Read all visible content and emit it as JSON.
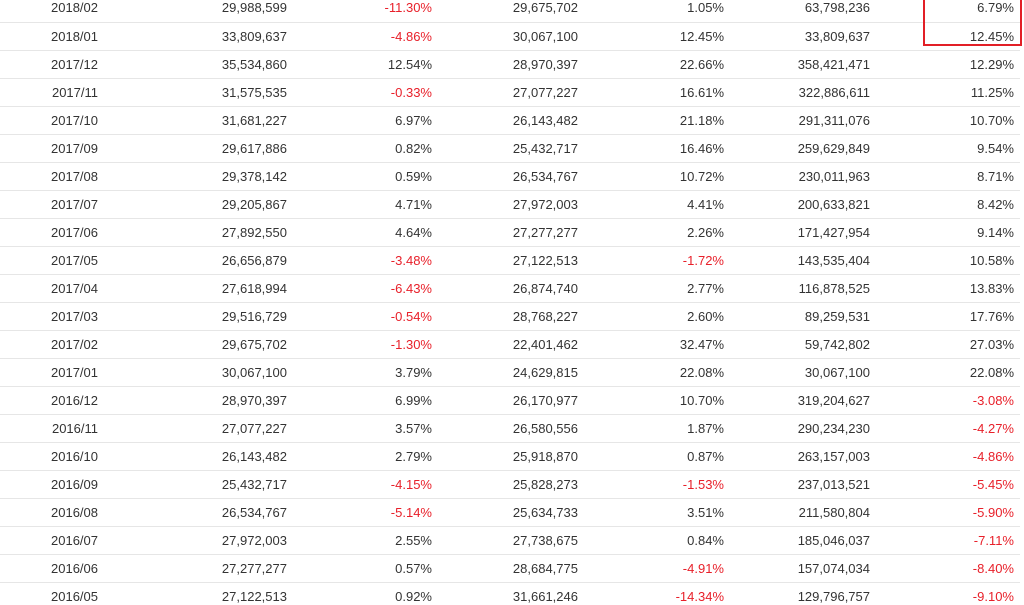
{
  "table": {
    "rows": [
      {
        "month": "2018/02",
        "v1": "29,988,599",
        "p1": "-11.30%",
        "v2": "29,675,702",
        "p2": "1.05%",
        "v3": "63,798,236",
        "p3": "6.79%"
      },
      {
        "month": "2018/01",
        "v1": "33,809,637",
        "p1": "-4.86%",
        "v2": "30,067,100",
        "p2": "12.45%",
        "v3": "33,809,637",
        "p3": "12.45%"
      },
      {
        "month": "2017/12",
        "v1": "35,534,860",
        "p1": "12.54%",
        "v2": "28,970,397",
        "p2": "22.66%",
        "v3": "358,421,471",
        "p3": "12.29%"
      },
      {
        "month": "2017/11",
        "v1": "31,575,535",
        "p1": "-0.33%",
        "v2": "27,077,227",
        "p2": "16.61%",
        "v3": "322,886,611",
        "p3": "11.25%"
      },
      {
        "month": "2017/10",
        "v1": "31,681,227",
        "p1": "6.97%",
        "v2": "26,143,482",
        "p2": "21.18%",
        "v3": "291,311,076",
        "p3": "10.70%"
      },
      {
        "month": "2017/09",
        "v1": "29,617,886",
        "p1": "0.82%",
        "v2": "25,432,717",
        "p2": "16.46%",
        "v3": "259,629,849",
        "p3": "9.54%"
      },
      {
        "month": "2017/08",
        "v1": "29,378,142",
        "p1": "0.59%",
        "v2": "26,534,767",
        "p2": "10.72%",
        "v3": "230,011,963",
        "p3": "8.71%"
      },
      {
        "month": "2017/07",
        "v1": "29,205,867",
        "p1": "4.71%",
        "v2": "27,972,003",
        "p2": "4.41%",
        "v3": "200,633,821",
        "p3": "8.42%"
      },
      {
        "month": "2017/06",
        "v1": "27,892,550",
        "p1": "4.64%",
        "v2": "27,277,277",
        "p2": "2.26%",
        "v3": "171,427,954",
        "p3": "9.14%"
      },
      {
        "month": "2017/05",
        "v1": "26,656,879",
        "p1": "-3.48%",
        "v2": "27,122,513",
        "p2": "-1.72%",
        "v3": "143,535,404",
        "p3": "10.58%"
      },
      {
        "month": "2017/04",
        "v1": "27,618,994",
        "p1": "-6.43%",
        "v2": "26,874,740",
        "p2": "2.77%",
        "v3": "116,878,525",
        "p3": "13.83%"
      },
      {
        "month": "2017/03",
        "v1": "29,516,729",
        "p1": "-0.54%",
        "v2": "28,768,227",
        "p2": "2.60%",
        "v3": "89,259,531",
        "p3": "17.76%"
      },
      {
        "month": "2017/02",
        "v1": "29,675,702",
        "p1": "-1.30%",
        "v2": "22,401,462",
        "p2": "32.47%",
        "v3": "59,742,802",
        "p3": "27.03%"
      },
      {
        "month": "2017/01",
        "v1": "30,067,100",
        "p1": "3.79%",
        "v2": "24,629,815",
        "p2": "22.08%",
        "v3": "30,067,100",
        "p3": "22.08%"
      },
      {
        "month": "2016/12",
        "v1": "28,970,397",
        "p1": "6.99%",
        "v2": "26,170,977",
        "p2": "10.70%",
        "v3": "319,204,627",
        "p3": "-3.08%"
      },
      {
        "month": "2016/11",
        "v1": "27,077,227",
        "p1": "3.57%",
        "v2": "26,580,556",
        "p2": "1.87%",
        "v3": "290,234,230",
        "p3": "-4.27%"
      },
      {
        "month": "2016/10",
        "v1": "26,143,482",
        "p1": "2.79%",
        "v2": "25,918,870",
        "p2": "0.87%",
        "v3": "263,157,003",
        "p3": "-4.86%"
      },
      {
        "month": "2016/09",
        "v1": "25,432,717",
        "p1": "-4.15%",
        "v2": "25,828,273",
        "p2": "-1.53%",
        "v3": "237,013,521",
        "p3": "-5.45%"
      },
      {
        "month": "2016/08",
        "v1": "26,534,767",
        "p1": "-5.14%",
        "v2": "25,634,733",
        "p2": "3.51%",
        "v3": "211,580,804",
        "p3": "-5.90%"
      },
      {
        "month": "2016/07",
        "v1": "27,972,003",
        "p1": "2.55%",
        "v2": "27,738,675",
        "p2": "0.84%",
        "v3": "185,046,037",
        "p3": "-7.11%"
      },
      {
        "month": "2016/06",
        "v1": "27,277,277",
        "p1": "0.57%",
        "v2": "28,684,775",
        "p2": "-4.91%",
        "v3": "157,074,034",
        "p3": "-8.40%"
      },
      {
        "month": "2016/05",
        "v1": "27,122,513",
        "p1": "0.92%",
        "v2": "31,661,246",
        "p2": "-14.34%",
        "v3": "129,796,757",
        "p3": "-9.10%"
      }
    ]
  },
  "colors": {
    "text": "#333333",
    "negative": "#e8202a",
    "highlight_border": "#e21f26",
    "row_divider": "#e6e6e6"
  }
}
